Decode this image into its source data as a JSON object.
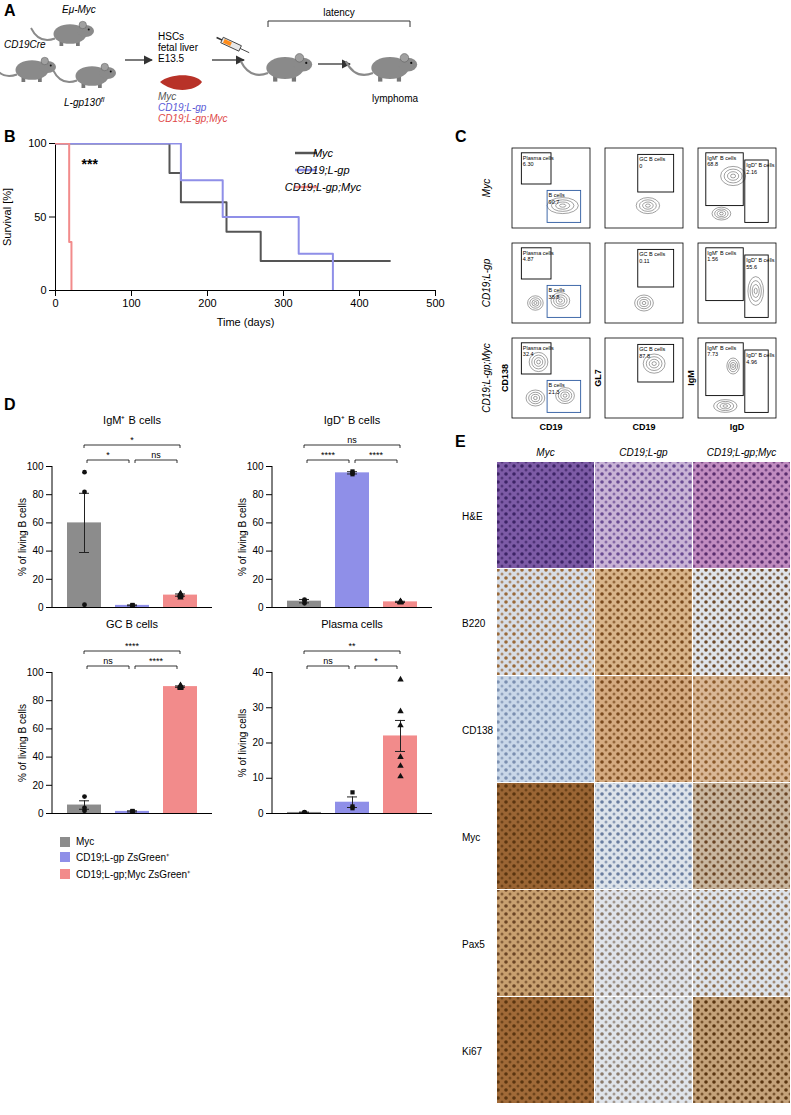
{
  "panel_labels": [
    "A",
    "B",
    "C",
    "D",
    "E"
  ],
  "diagram": {
    "parents": [
      {
        "text": "Eμ-Myc"
      },
      {
        "text": "CD19Cre"
      },
      {
        "text": "L-gp130",
        "sup": "fl"
      }
    ],
    "source": [
      "HSCs",
      "fetal liver",
      "E13.5"
    ],
    "genotypes": [
      {
        "name": "Myc",
        "color": "#555555"
      },
      {
        "name": "CD19;L-gp",
        "color": "#5a5ad6"
      },
      {
        "name": "CD19;L-gp;Myc",
        "color": "#e04848"
      }
    ],
    "latency": "latency",
    "outcome": "lymphoma"
  },
  "chart_data": [
    {
      "type": "line",
      "xlabel": "Time (days)",
      "ylabel": "Survival [%]",
      "xlim": [
        0,
        500
      ],
      "xticks": [
        0,
        100,
        200,
        300,
        400,
        500
      ],
      "ylim": [
        0,
        100
      ],
      "yticks": [
        0,
        50,
        100
      ],
      "legend": "top-right",
      "annotations": [
        {
          "text": "***",
          "x": 45,
          "y": 86
        }
      ],
      "series": [
        {
          "name": "Myc",
          "color": "#555555",
          "x": [
            0,
            150,
            165,
            225,
            270,
            440
          ],
          "values": [
            100,
            80,
            60,
            40,
            20,
            20
          ]
        },
        {
          "name": "CD19;L-gp",
          "color": "#8f8fe8",
          "x": [
            0,
            165,
            220,
            320,
            365
          ],
          "values": [
            100,
            75,
            50,
            25,
            0
          ]
        },
        {
          "name": "CD19;L-gp;Myc",
          "color": "#f28b8b",
          "x": [
            0,
            18,
            21
          ],
          "values": [
            100,
            33,
            0
          ]
        }
      ]
    },
    {
      "type": "bar",
      "title": "IgM⁺ B cells",
      "ylabel": "% of living B cells",
      "ylim": [
        0,
        100
      ],
      "yticks": [
        0,
        20,
        40,
        60,
        80,
        100
      ],
      "tick_labels": "y",
      "legend": "bottom",
      "comparisons": [
        {
          "pair": [
            0,
            1
          ],
          "label": "*"
        },
        {
          "pair": [
            1,
            2
          ],
          "label": "ns"
        },
        {
          "pair": [
            0,
            2
          ],
          "label": "*"
        }
      ],
      "series": [
        {
          "name": "Myc",
          "color": "#8c8c8c",
          "marker": "circle",
          "values": [
            60
          ],
          "errors": [
            21
          ],
          "points": [
            96,
            82,
            2
          ]
        },
        {
          "name": "CD19;L-gp ZsGreen⁺",
          "color": "#8f8fe8",
          "marker": "square",
          "values": [
            1.5
          ],
          "errors": [
            0.3
          ],
          "points": [
            1.2,
            1.8,
            1.5
          ]
        },
        {
          "name": "CD19;L-gp;Myc ZsGreen⁺",
          "color": "#f28b8b",
          "marker": "triangle",
          "values": [
            8.8
          ],
          "errors": [
            0.8
          ],
          "points": [
            7,
            8,
            9,
            10,
            9.5,
            9
          ]
        }
      ]
    },
    {
      "type": "bar",
      "title": "IgD⁺ B cells",
      "ylabel": "% of living B cells",
      "ylim": [
        0,
        100
      ],
      "yticks": [
        0,
        20,
        40,
        60,
        80,
        100
      ],
      "tick_labels": "y",
      "comparisons": [
        {
          "pair": [
            0,
            1
          ],
          "label": "****"
        },
        {
          "pair": [
            1,
            2
          ],
          "label": "****"
        },
        {
          "pair": [
            0,
            2
          ],
          "label": "ns"
        }
      ],
      "series": [
        {
          "name": "Myc",
          "color": "#8c8c8c",
          "marker": "circle",
          "values": [
            4.5
          ],
          "errors": [
            1.2
          ],
          "points": [
            3,
            5,
            5.5
          ]
        },
        {
          "name": "CD19;L-gp ZsGreen⁺",
          "color": "#8f8fe8",
          "marker": "square",
          "values": [
            95.5
          ],
          "errors": [
            0.8
          ],
          "points": [
            94.5,
            95.5,
            96.5
          ]
        },
        {
          "name": "CD19;L-gp;Myc ZsGreen⁺",
          "color": "#f28b8b",
          "marker": "triangle",
          "values": [
            4
          ],
          "errors": [
            0.4
          ],
          "points": [
            3.5,
            4,
            4.5,
            3.8,
            4.2,
            4
          ]
        }
      ]
    },
    {
      "type": "bar",
      "title": "GC B cells",
      "ylabel": "% of living B cells",
      "ylim": [
        0,
        100
      ],
      "yticks": [
        0,
        20,
        40,
        60,
        80,
        100
      ],
      "tick_labels": "y",
      "comparisons": [
        {
          "pair": [
            0,
            1
          ],
          "label": "ns"
        },
        {
          "pair": [
            1,
            2
          ],
          "label": "****"
        },
        {
          "pair": [
            0,
            2
          ],
          "label": "****"
        }
      ],
      "series": [
        {
          "name": "Myc",
          "color": "#8c8c8c",
          "marker": "circle",
          "values": [
            6
          ],
          "errors": [
            3
          ],
          "points": [
            2,
            4,
            12
          ]
        },
        {
          "name": "CD19;L-gp ZsGreen⁺",
          "color": "#8f8fe8",
          "marker": "square",
          "values": [
            1.5
          ],
          "errors": [
            0.4
          ],
          "points": [
            1,
            1.8,
            1.7
          ]
        },
        {
          "name": "CD19;L-gp;Myc ZsGreen⁺",
          "color": "#f28b8b",
          "marker": "triangle",
          "values": [
            90
          ],
          "errors": [
            0.5
          ],
          "points": [
            89,
            90,
            91,
            90.5,
            89.5,
            90
          ]
        }
      ]
    },
    {
      "type": "bar",
      "title": "Plasma cells",
      "ylabel": "% of living cells",
      "ylim": [
        0,
        40
      ],
      "yticks": [
        0,
        10,
        20,
        30,
        40
      ],
      "tick_labels": "y",
      "comparisons": [
        {
          "pair": [
            0,
            1
          ],
          "label": "ns"
        },
        {
          "pair": [
            1,
            2
          ],
          "label": "*"
        },
        {
          "pair": [
            0,
            2
          ],
          "label": "**"
        }
      ],
      "series": [
        {
          "name": "Myc",
          "color": "#8c8c8c",
          "marker": "circle",
          "values": [
            0.3
          ],
          "errors": [
            0.1
          ],
          "points": [
            0.2,
            0.3,
            0.4
          ]
        },
        {
          "name": "CD19;L-gp ZsGreen⁺",
          "color": "#8f8fe8",
          "marker": "square",
          "values": [
            3.2
          ],
          "errors": [
            1.5
          ],
          "points": [
            1.5,
            2,
            6
          ]
        },
        {
          "name": "CD19;L-gp;Myc ZsGreen⁺",
          "color": "#f28b8b",
          "marker": "triangle",
          "values": [
            22
          ],
          "errors": [
            4.4
          ],
          "points": [
            38,
            29,
            25,
            16,
            13.5,
            10.5
          ]
        }
      ]
    }
  ],
  "flow": {
    "axes": [
      {
        "x": "CD19",
        "y": "CD138"
      },
      {
        "x": "CD19",
        "y": "GL7"
      },
      {
        "x": "IgD",
        "y": "IgM"
      }
    ],
    "rows": [
      {
        "name": "Myc",
        "gates": [
          [
            {
              "label": "Plasma cells",
              "value": "6.30"
            },
            {
              "label": "B cells",
              "value": "90.7"
            }
          ],
          [
            {
              "label": "GC B cells",
              "value": "0"
            }
          ],
          [
            {
              "label": "IgM⁺ B cells",
              "value": "68.8"
            },
            {
              "label": "IgD⁺ B cells",
              "value": "2.16"
            }
          ]
        ]
      },
      {
        "name": "CD19;L-gp",
        "gates": [
          [
            {
              "label": "Plasma cells",
              "value": "4.87"
            },
            {
              "label": "B cells",
              "value": "38.8"
            }
          ],
          [
            {
              "label": "GC B cells",
              "value": "0.11"
            }
          ],
          [
            {
              "label": "IgM⁺ B cells",
              "value": "1.56"
            },
            {
              "label": "IgD⁺ B cells",
              "value": "55.6"
            }
          ]
        ]
      },
      {
        "name": "CD19;L-gp;Myc",
        "gates": [
          [
            {
              "label": "Plasma cells",
              "value": "32.4"
            },
            {
              "label": "B cells",
              "value": "21.3"
            }
          ],
          [
            {
              "label": "GC B cells",
              "value": "87.8"
            }
          ],
          [
            {
              "label": "IgM⁺ B cells",
              "value": "7.73"
            },
            {
              "label": "IgD⁺ B cells",
              "value": "4.96"
            }
          ]
        ]
      }
    ]
  },
  "histology": {
    "columns": [
      "Myc",
      "CD19;L-gp",
      "CD19;L-gp;Myc"
    ],
    "rows": [
      "H&E",
      "B220",
      "CD138",
      "Myc",
      "Pax5",
      "Ki67"
    ]
  }
}
